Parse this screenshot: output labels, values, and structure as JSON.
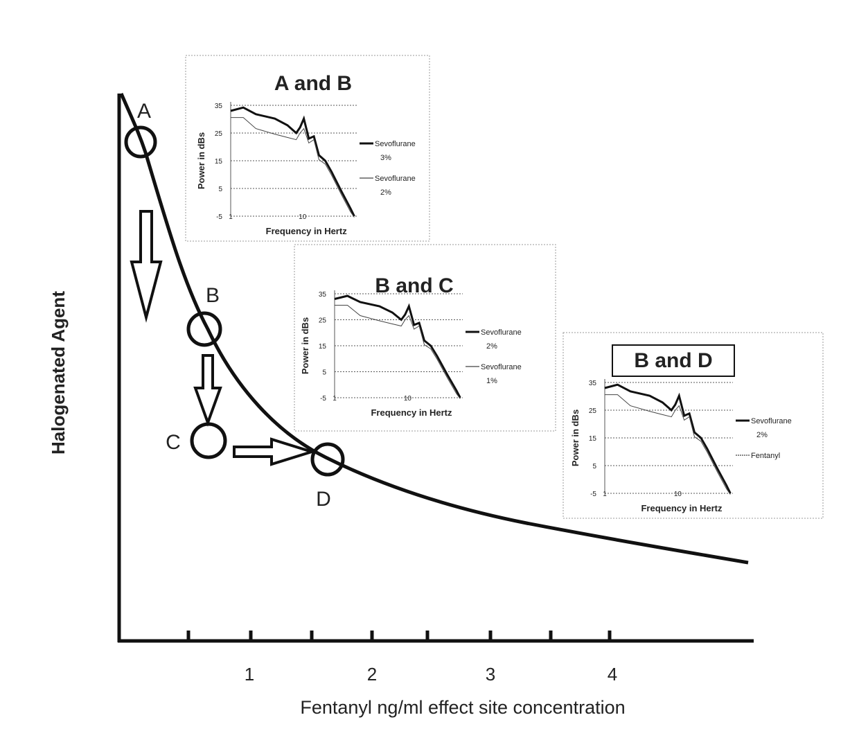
{
  "main": {
    "y_label": "Halogenated Agent",
    "x_label": "Fentanyl ng/ml effect site concentration",
    "x_tick_labels": [
      "1",
      "2",
      "3",
      "4"
    ],
    "points": [
      "A",
      "B",
      "C",
      "D"
    ]
  },
  "insets": [
    {
      "title": "A and B",
      "y_label": "Power in dBs",
      "x_label": "Frequency in Hertz",
      "y_tick_labels": [
        "35",
        "25",
        "15",
        "5",
        "-5"
      ],
      "x_tick_labels": [
        "1",
        "10"
      ],
      "legend": [
        [
          "Sevoflurane",
          "3%"
        ],
        [
          "Sevoflurane",
          "2%"
        ]
      ]
    },
    {
      "title": "B and C",
      "y_label": "Power in dBs",
      "x_label": "Frequency in Hertz",
      "y_tick_labels": [
        "35",
        "25",
        "15",
        "5",
        "-5"
      ],
      "x_tick_labels": [
        "1",
        "10"
      ],
      "legend": [
        [
          "Sevoflurane",
          "2%"
        ],
        [
          "Sevoflurane",
          "1%"
        ]
      ]
    },
    {
      "title": "B and D",
      "y_label": "Power in dBs",
      "x_label": "Frequency in Hertz",
      "y_tick_labels": [
        "35",
        "25",
        "15",
        "5",
        "-5"
      ],
      "x_tick_labels": [
        "1",
        "10"
      ],
      "legend": [
        [
          "Sevoflurane",
          "2%"
        ],
        [
          "Fentanyl"
        ]
      ]
    }
  ]
}
